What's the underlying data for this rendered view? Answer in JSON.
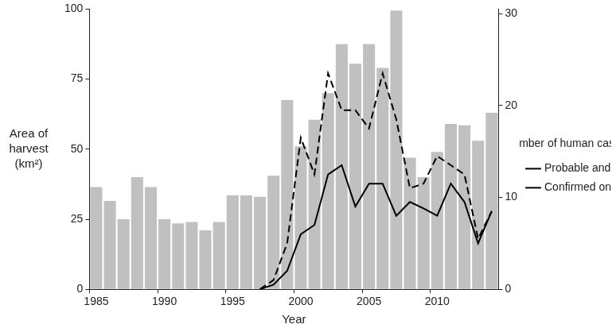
{
  "chart_data": {
    "type": "bar",
    "x_label": "Year",
    "y_label": "Area of harvest (km²)",
    "y2_label": "Number of human cases",
    "categories": [
      "1985",
      null,
      null,
      null,
      null,
      "1990",
      null,
      null,
      null,
      null,
      "1995",
      null,
      null,
      null,
      null,
      "2000",
      null,
      null,
      null,
      null,
      "2005",
      null,
      null,
      null,
      null,
      "2010",
      null,
      null,
      null,
      null
    ],
    "series": [
      {
        "type": "bar",
        "color": "#c0c0c0",
        "values": [
          36.5,
          31.5,
          25,
          40,
          36.5,
          25,
          23.5,
          24,
          21,
          24,
          33.5,
          33.5,
          33,
          40.5,
          67.5,
          51,
          60.5,
          70,
          87.5,
          80.5,
          87.5,
          79,
          99.5,
          47,
          40,
          49,
          59,
          58.5,
          53,
          63
        ]
      },
      {
        "name": "Probable and confirmed",
        "type": "line",
        "axis": "y2",
        "color": "#000000",
        "line_style": "dashed",
        "values": [
          null,
          null,
          null,
          null,
          null,
          null,
          null,
          null,
          null,
          null,
          null,
          null,
          0,
          1,
          5,
          16.5,
          12.5,
          23.5,
          19.5,
          19.5,
          17.5,
          23.5,
          18.5,
          11,
          11.5,
          14.5,
          13.5,
          12.5,
          5.5,
          8.5
        ]
      },
      {
        "name": "Confirmed only",
        "type": "line",
        "axis": "y2",
        "color": "#000000",
        "line_style": "solid",
        "values": [
          null,
          null,
          null,
          null,
          null,
          null,
          null,
          null,
          null,
          null,
          null,
          null,
          0,
          0.5,
          2,
          6,
          7,
          12.5,
          13.5,
          9,
          11.5,
          11.5,
          8,
          9.5,
          8.8,
          8,
          11.5,
          9.5,
          5,
          8.5
        ]
      }
    ],
    "ylim": [
      0,
      100
    ],
    "yticks": [
      0,
      25,
      50,
      75,
      100
    ],
    "y2lim": [
      0,
      30.5
    ],
    "y2ticks": [
      0,
      10,
      20,
      30
    ],
    "grid": false,
    "legend": "right"
  }
}
